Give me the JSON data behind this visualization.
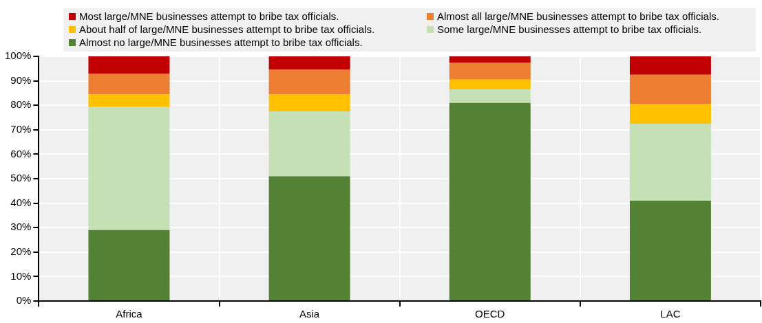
{
  "chart_data": {
    "type": "bar",
    "stacked": true,
    "categories": [
      "Africa",
      "Asia",
      "OECD",
      "LAC"
    ],
    "series": [
      {
        "name": "Almost no large/MNE businesses attempt to bribe tax officials.",
        "color": "#548235",
        "values": [
          29,
          51,
          81,
          41
        ]
      },
      {
        "name": "Some large/MNE businesses attempt to bribe tax officials.",
        "color": "#c5e0b4",
        "values": [
          50.5,
          26.5,
          5.5,
          31.5
        ]
      },
      {
        "name": "About half of large/MNE businesses attempt to bribe tax officials.",
        "color": "#ffc000",
        "values": [
          5,
          7,
          4,
          8
        ]
      },
      {
        "name": "Almost all large/MNE businesses attempt to bribe tax officials.",
        "color": "#ed7d31",
        "values": [
          8.5,
          10,
          7,
          12
        ]
      },
      {
        "name": "Most large/MNE businesses attempt to bribe tax officials.",
        "color": "#c00000",
        "values": [
          7,
          5.5,
          2.5,
          7.5
        ]
      }
    ],
    "ylim": [
      0,
      100
    ],
    "yticks": [
      {
        "value": 0,
        "label": "0%"
      },
      {
        "value": 10,
        "label": "10%"
      },
      {
        "value": 20,
        "label": "20%"
      },
      {
        "value": 30,
        "label": "30%"
      },
      {
        "value": 40,
        "label": "40%"
      },
      {
        "value": 50,
        "label": "50%"
      },
      {
        "value": 60,
        "label": "60%"
      },
      {
        "value": 70,
        "label": "70%"
      },
      {
        "value": 80,
        "label": "80%"
      },
      {
        "value": 90,
        "label": "90%"
      },
      {
        "value": 100,
        "label": "100%"
      }
    ],
    "grid": true,
    "legend": "top"
  }
}
